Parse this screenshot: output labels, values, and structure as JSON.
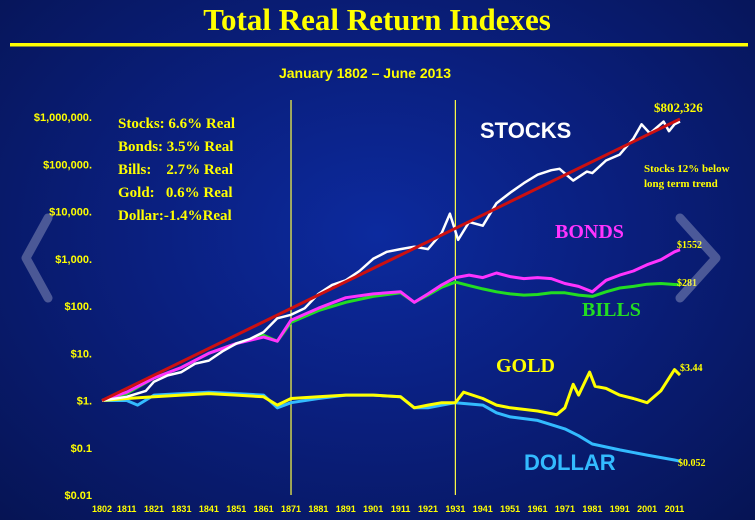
{
  "chart_data": {
    "type": "line",
    "title": "Total Real Return Indexes",
    "subtitle": "January 1802 – June 2013",
    "y_scale": "log",
    "ylim": [
      0.01,
      1000000
    ],
    "xlim": [
      1802,
      2013
    ],
    "y_ticks": [
      1000000,
      100000,
      10000,
      1000,
      100,
      10,
      1,
      0.1,
      0.01
    ],
    "y_tick_labels": [
      "$1,000,000.",
      "$100,000.",
      "$10,000.",
      "$1,000.",
      "$100.",
      "$10.",
      "$1.",
      "$0.1",
      "$0.01"
    ],
    "x_ticks": [
      1802,
      1811,
      1821,
      1831,
      1841,
      1851,
      1861,
      1871,
      1881,
      1891,
      1901,
      1911,
      1921,
      1931,
      1941,
      1951,
      1961,
      1971,
      1981,
      1991,
      2001,
      2011
    ],
    "x_tick_labels": [
      "1802",
      "1811",
      "1821",
      "1831",
      "1841",
      "1851",
      "1861",
      "1871",
      "1881",
      "1891",
      "1901",
      "1911",
      "1921",
      "1931",
      "1941",
      "1951",
      "1961",
      "1971",
      "1981",
      "1991",
      "2001",
      "2011"
    ],
    "vertical_lines": [
      1871,
      1931
    ],
    "stats": [
      "Stocks: 6.6% Real",
      "Bonds: 3.5% Real",
      "Bills:    2.7% Real",
      "Gold:   0.6% Real",
      "Dollar:-1.4%Real"
    ],
    "annotations": {
      "stocks_end": "$802,326",
      "stocks_note_1": "Stocks 12% below",
      "stocks_note_2": "long term trend",
      "bonds_end": "$1552",
      "bills_end": "$281",
      "gold_end": "$3.44",
      "dollar_end": "$0.052"
    },
    "trend_line": {
      "color": "#cc1010",
      "x": [
        1802,
        2013
      ],
      "y": [
        1,
        910000
      ]
    },
    "series": [
      {
        "name": "STOCKS",
        "color": "#ffffff",
        "x": [
          1802,
          1811,
          1818,
          1821,
          1826,
          1831,
          1836,
          1841,
          1846,
          1851,
          1856,
          1861,
          1866,
          1871,
          1876,
          1881,
          1886,
          1891,
          1896,
          1901,
          1906,
          1911,
          1916,
          1921,
          1926,
          1929,
          1932,
          1936,
          1941,
          1946,
          1951,
          1956,
          1961,
          1966,
          1969,
          1974,
          1979,
          1981,
          1986,
          1991,
          1996,
          1999,
          2002,
          2007,
          2009,
          2011,
          2013
        ],
        "y": [
          1,
          1.2,
          1.6,
          2.5,
          3.4,
          4,
          6,
          7,
          11,
          16,
          20,
          28,
          55,
          65,
          90,
          180,
          280,
          350,
          550,
          1000,
          1400,
          1600,
          1800,
          1600,
          3500,
          9000,
          2500,
          6000,
          5000,
          15000,
          25000,
          40000,
          60000,
          75000,
          80000,
          45000,
          70000,
          65000,
          120000,
          160000,
          350000,
          700000,
          450000,
          800000,
          500000,
          700000,
          802326
        ]
      },
      {
        "name": "BONDS",
        "color": "#ff33ff",
        "x": [
          1802,
          1811,
          1821,
          1831,
          1841,
          1851,
          1861,
          1866,
          1871,
          1881,
          1891,
          1901,
          1911,
          1916,
          1921,
          1926,
          1931,
          1936,
          1941,
          1946,
          1951,
          1956,
          1961,
          1966,
          1971,
          1976,
          1981,
          1986,
          1991,
          1996,
          2001,
          2006,
          2011,
          2013
        ],
        "y": [
          1,
          1.5,
          3,
          5,
          10,
          16,
          22,
          18,
          50,
          90,
          150,
          180,
          200,
          120,
          180,
          280,
          400,
          450,
          400,
          500,
          420,
          380,
          400,
          380,
          300,
          260,
          200,
          350,
          450,
          550,
          750,
          950,
          1400,
          1552
        ]
      },
      {
        "name": "BILLS",
        "color": "#22dd22",
        "x": [
          1802,
          1811,
          1821,
          1831,
          1841,
          1851,
          1861,
          1866,
          1871,
          1881,
          1891,
          1901,
          1911,
          1916,
          1921,
          1926,
          1931,
          1936,
          1941,
          1946,
          1951,
          1956,
          1961,
          1966,
          1971,
          1976,
          1981,
          1986,
          1991,
          1996,
          2001,
          2006,
          2011,
          2013
        ],
        "y": [
          1,
          1.4,
          3,
          5,
          10,
          16,
          24,
          18,
          45,
          80,
          120,
          160,
          190,
          120,
          170,
          250,
          320,
          270,
          230,
          200,
          180,
          170,
          175,
          190,
          190,
          170,
          160,
          200,
          240,
          260,
          290,
          300,
          285,
          281
        ]
      },
      {
        "name": "GOLD",
        "color": "#ffff00",
        "x": [
          1802,
          1811,
          1821,
          1831,
          1841,
          1851,
          1861,
          1866,
          1871,
          1881,
          1891,
          1901,
          1911,
          1916,
          1921,
          1926,
          1931,
          1934,
          1941,
          1946,
          1951,
          1961,
          1968,
          1971,
          1974,
          1976,
          1980,
          1982,
          1986,
          1991,
          1996,
          2001,
          2006,
          2011,
          2013
        ],
        "y": [
          1,
          1.1,
          1.2,
          1.3,
          1.4,
          1.3,
          1.2,
          0.8,
          1.1,
          1.2,
          1.3,
          1.3,
          1.2,
          0.7,
          0.8,
          0.9,
          0.9,
          1.5,
          1.1,
          0.8,
          0.7,
          0.6,
          0.5,
          0.7,
          2.2,
          1.3,
          4.0,
          2.0,
          1.8,
          1.3,
          1.1,
          0.9,
          1.6,
          4.5,
          3.44
        ]
      },
      {
        "name": "DOLLAR",
        "color": "#33bbff",
        "x": [
          1802,
          1811,
          1815,
          1821,
          1831,
          1841,
          1851,
          1861,
          1866,
          1871,
          1881,
          1891,
          1901,
          1911,
          1916,
          1921,
          1926,
          1931,
          1941,
          1946,
          1951,
          1961,
          1971,
          1976,
          1981,
          1991,
          2001,
          2011,
          2013
        ],
        "y": [
          1,
          1.0,
          0.8,
          1.3,
          1.4,
          1.5,
          1.4,
          1.3,
          0.7,
          0.9,
          1.1,
          1.3,
          1.3,
          1.2,
          0.7,
          0.7,
          0.8,
          0.9,
          0.8,
          0.55,
          0.45,
          0.38,
          0.25,
          0.18,
          0.12,
          0.09,
          0.07,
          0.055,
          0.052
        ]
      }
    ]
  }
}
